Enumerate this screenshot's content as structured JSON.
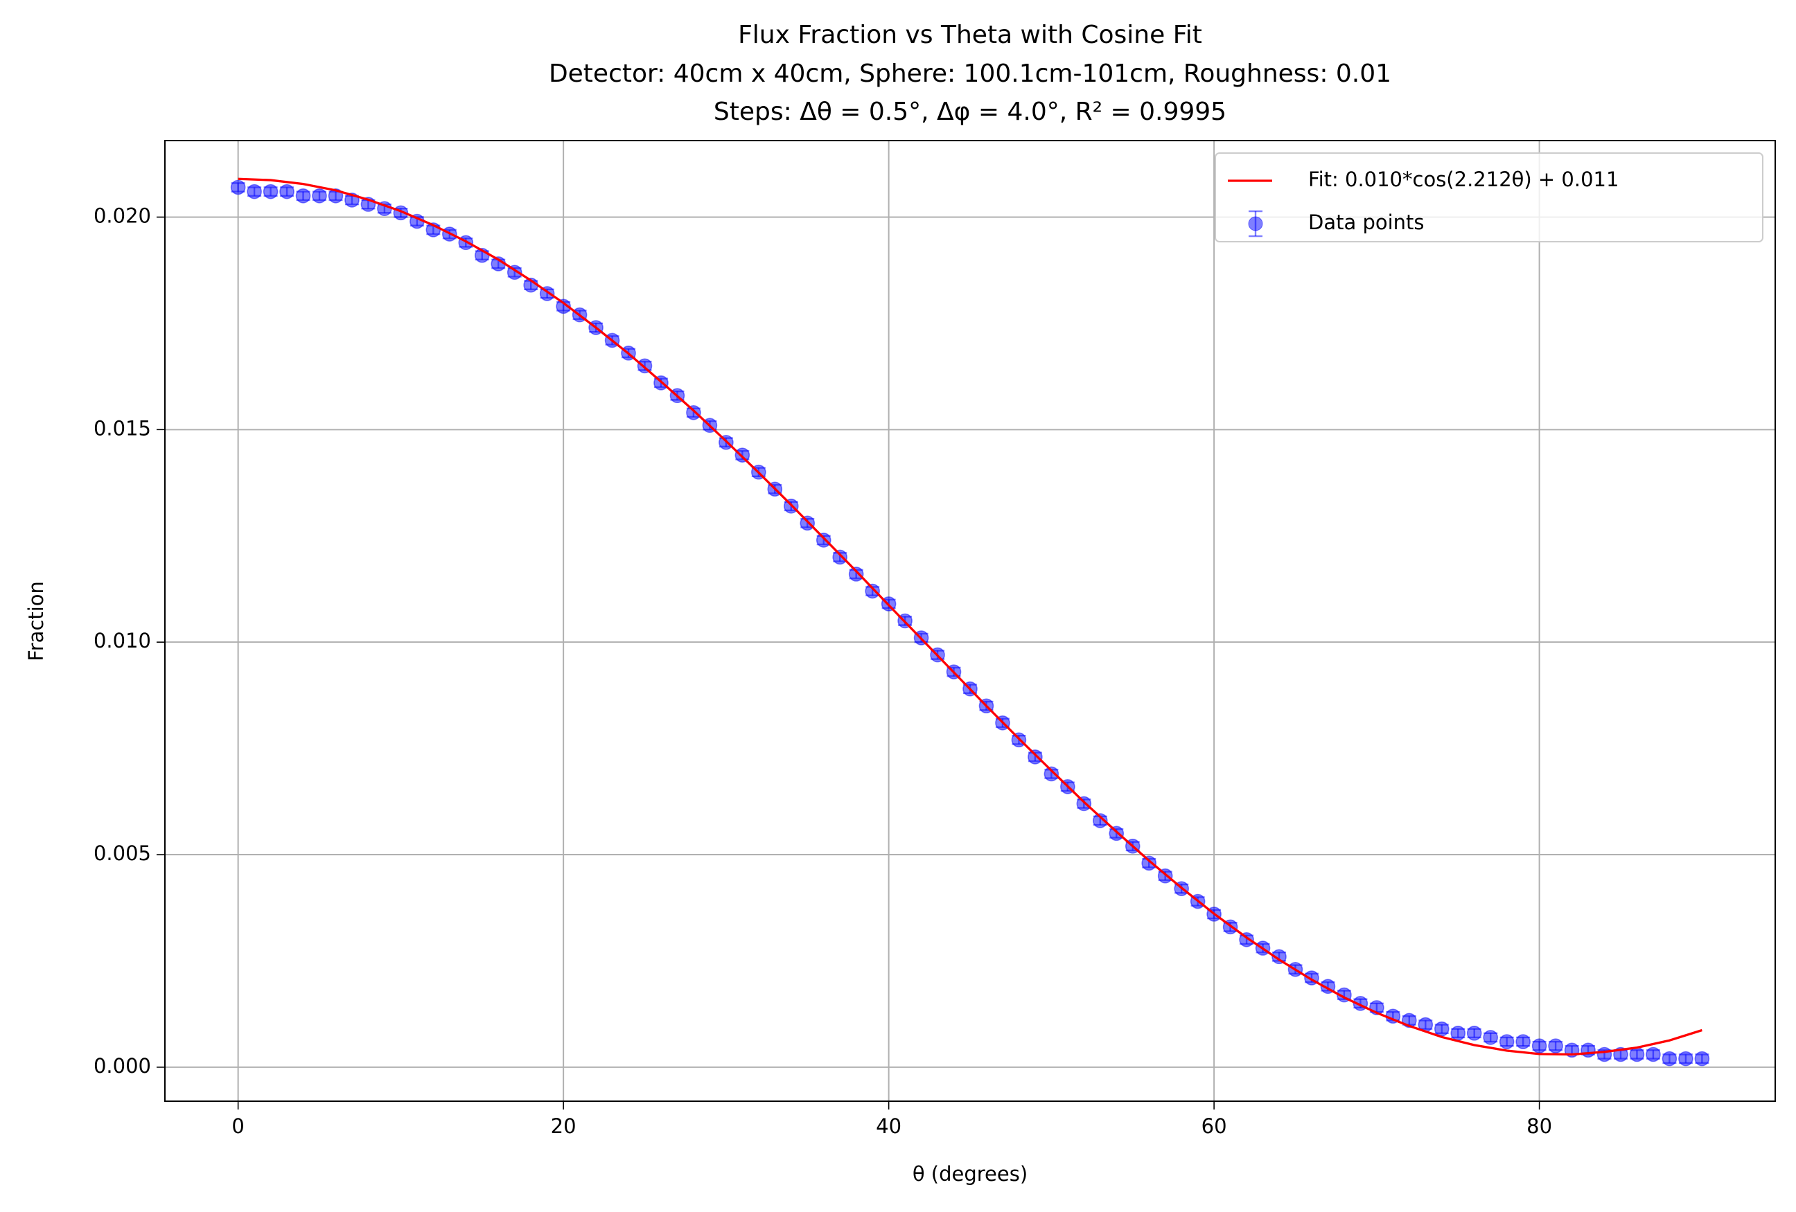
{
  "chart_data": {
    "type": "scatter",
    "title": [
      "Flux Fraction vs Theta with Cosine Fit",
      "Detector: 40cm x 40cm, Sphere: 100.1cm-101cm, Roughness: 0.01",
      "Steps: Δθ = 0.5°, Δφ = 4.0°, R² = 0.9995"
    ],
    "xlabel": "θ (degrees)",
    "ylabel": "Fraction",
    "xlim": [
      -4.5,
      94.5
    ],
    "ylim": [
      -0.0008,
      0.0218
    ],
    "xticks": [
      0,
      20,
      40,
      60,
      80
    ],
    "yticks": [
      {
        "value": 0,
        "label": "0.000"
      },
      {
        "value": 0.005,
        "label": "0.005"
      },
      {
        "value": 0.01,
        "label": "0.010"
      },
      {
        "value": 0.015,
        "label": "0.015"
      },
      {
        "value": 0.02,
        "label": "0.020"
      }
    ],
    "grid": true,
    "legend": "upper right",
    "series": [
      {
        "name": "Fit: 0.010*cos(2.212θ) + 0.011",
        "color": "#ff0000",
        "style": "line",
        "x": [
          0,
          2,
          4,
          6,
          8,
          10,
          12,
          14,
          16,
          18,
          20,
          22,
          24,
          26,
          28,
          30,
          32,
          34,
          36,
          38,
          40,
          42,
          44,
          46,
          48,
          50,
          52,
          54,
          56,
          58,
          60,
          62,
          64,
          66,
          68,
          70,
          72,
          74,
          76,
          78,
          80,
          82,
          84,
          86,
          88,
          90
        ],
        "values": [
          0.0209,
          0.02087,
          0.02078,
          0.02063,
          0.02041,
          0.02014,
          0.01981,
          0.01943,
          0.019,
          0.01851,
          0.01798,
          0.0174,
          0.01679,
          0.01613,
          0.01545,
          0.01473,
          0.01399,
          0.01323,
          0.01245,
          0.01167,
          0.01087,
          0.01008,
          0.00929,
          0.0085,
          0.00773,
          0.00698,
          0.00624,
          0.00554,
          0.00486,
          0.00422,
          0.00361,
          0.00305,
          0.00253,
          0.00206,
          0.00164,
          0.00128,
          0.00097,
          0.00071,
          0.00052,
          0.00039,
          0.00031,
          0.0003,
          0.00036,
          0.00046,
          0.00063,
          0.00087
        ]
      },
      {
        "name": "Data points",
        "color": "#0000ff",
        "style": "errorbar",
        "error": 0.0001,
        "x": [
          0,
          1,
          2,
          3,
          4,
          5,
          6,
          7,
          8,
          9,
          10,
          11,
          12,
          13,
          14,
          15,
          16,
          17,
          18,
          19,
          20,
          21,
          22,
          23,
          24,
          25,
          26,
          27,
          28,
          29,
          30,
          31,
          32,
          33,
          34,
          35,
          36,
          37,
          38,
          39,
          40,
          41,
          42,
          43,
          44,
          45,
          46,
          47,
          48,
          49,
          50,
          51,
          52,
          53,
          54,
          55,
          56,
          57,
          58,
          59,
          60,
          61,
          62,
          63,
          64,
          65,
          66,
          67,
          68,
          69,
          70,
          71,
          72,
          73,
          74,
          75,
          76,
          77,
          78,
          79,
          80,
          81,
          82,
          83,
          84,
          85,
          86,
          87,
          88,
          89,
          90
        ],
        "values": [
          0.0207,
          0.0206,
          0.0206,
          0.0206,
          0.0205,
          0.0205,
          0.0205,
          0.0204,
          0.0203,
          0.0202,
          0.0201,
          0.0199,
          0.0197,
          0.0196,
          0.0194,
          0.0191,
          0.0189,
          0.0187,
          0.0184,
          0.0182,
          0.0179,
          0.0177,
          0.0174,
          0.0171,
          0.0168,
          0.0165,
          0.0161,
          0.0158,
          0.0154,
          0.0151,
          0.0147,
          0.0144,
          0.014,
          0.0136,
          0.0132,
          0.0128,
          0.0124,
          0.012,
          0.0116,
          0.0112,
          0.0109,
          0.0105,
          0.0101,
          0.0097,
          0.0093,
          0.0089,
          0.0085,
          0.0081,
          0.0077,
          0.0073,
          0.0069,
          0.0066,
          0.0062,
          0.0058,
          0.0055,
          0.0052,
          0.0048,
          0.0045,
          0.0042,
          0.0039,
          0.0036,
          0.0033,
          0.003,
          0.0028,
          0.0026,
          0.0023,
          0.0021,
          0.0019,
          0.0017,
          0.0015,
          0.0014,
          0.0012,
          0.0011,
          0.001,
          0.0009,
          0.0008,
          0.0008,
          0.0007,
          0.0006,
          0.0006,
          0.0005,
          0.0005,
          0.0004,
          0.0004,
          0.0003,
          0.0003,
          0.0003,
          0.0003,
          0.0002,
          0.0002,
          0.0002
        ]
      }
    ]
  }
}
